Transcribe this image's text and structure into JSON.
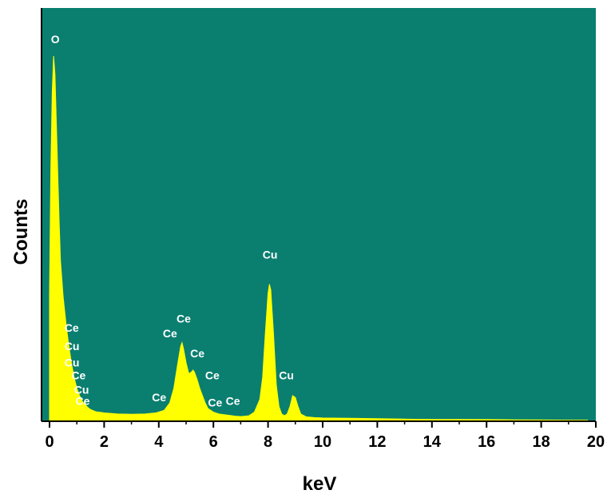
{
  "chart_data": {
    "type": "area",
    "title": "",
    "xlabel": "keV",
    "ylabel": "Counts",
    "xlim": [
      -0.3,
      20.2
    ],
    "ylim": [
      0,
      100
    ],
    "x_ticks": [
      "0",
      "2",
      "4",
      "6",
      "8",
      "10",
      "12",
      "14",
      "16",
      "18",
      "20"
    ],
    "grid": false,
    "legend": "none",
    "colors": {
      "plot_background": "#0a7f70",
      "spectrum_fill": "#ffff00",
      "peak_label": "#ffffff",
      "axes": "#000000"
    },
    "series": [
      {
        "x": [
          0.0,
          0.05,
          0.1,
          0.15,
          0.2,
          0.25,
          0.3,
          0.35,
          0.4,
          0.5,
          0.6,
          0.7,
          0.8,
          0.9,
          1.0,
          1.1,
          1.2,
          1.3,
          1.4,
          1.5,
          1.7,
          2.0,
          2.5,
          3.0,
          3.5,
          3.9,
          4.2,
          4.4,
          4.55,
          4.7,
          4.8,
          4.85,
          4.9,
          5.0,
          5.1,
          5.2,
          5.25,
          5.3,
          5.4,
          5.5,
          5.6,
          5.7,
          5.8,
          6.0,
          6.2,
          6.5,
          6.8,
          7.0,
          7.3,
          7.5,
          7.7,
          7.8,
          7.9,
          8.0,
          8.05,
          8.1,
          8.2,
          8.3,
          8.4,
          8.5,
          8.6,
          8.7,
          8.8,
          8.9,
          9.0,
          9.1,
          9.2,
          9.4,
          9.7,
          10.0,
          11.0,
          12.0,
          13.0,
          14.0,
          15.0,
          16.0,
          17.0,
          18.0,
          19.0,
          19.7
        ],
        "values": [
          35,
          70,
          90,
          100,
          95,
          82,
          68,
          55,
          44,
          34,
          27,
          21,
          16,
          12,
          9,
          7,
          5.5,
          4.5,
          3.8,
          3.2,
          2.6,
          2.3,
          2.0,
          1.9,
          2.0,
          2.3,
          3.0,
          5.0,
          9.0,
          16.0,
          20.5,
          21.5,
          20.0,
          16.0,
          13.0,
          13.5,
          14.0,
          13.5,
          11.5,
          9.0,
          7.0,
          5.0,
          3.5,
          2.5,
          2.0,
          1.7,
          1.4,
          1.3,
          1.5,
          2.5,
          6.0,
          12.0,
          24.0,
          35.0,
          37.5,
          36.0,
          24.0,
          10.0,
          4.0,
          2.0,
          1.5,
          2.0,
          4.0,
          7.0,
          6.5,
          4.0,
          2.0,
          1.2,
          1.0,
          0.9,
          0.8,
          0.7,
          0.6,
          0.5,
          0.5,
          0.45,
          0.4,
          0.35,
          0.3,
          0.3
        ]
      }
    ],
    "annotations": [
      {
        "text": "O",
        "x": 0.05,
        "y": 103.5
      },
      {
        "text": "Ce",
        "x": 0.55,
        "y": 24.5
      },
      {
        "text": "Cu",
        "x": 0.55,
        "y": 19.5
      },
      {
        "text": "Cu",
        "x": 0.55,
        "y": 15.0
      },
      {
        "text": "Ce",
        "x": 0.8,
        "y": 11.5
      },
      {
        "text": "Cu",
        "x": 0.9,
        "y": 7.5
      },
      {
        "text": "Ce",
        "x": 0.95,
        "y": 4.5
      },
      {
        "text": "Ce",
        "x": 3.75,
        "y": 5.5
      },
      {
        "text": "Ce",
        "x": 4.15,
        "y": 23.0
      },
      {
        "text": "Ce",
        "x": 4.65,
        "y": 27.0
      },
      {
        "text": "Ce",
        "x": 5.15,
        "y": 17.5
      },
      {
        "text": "Ce",
        "x": 5.7,
        "y": 11.5
      },
      {
        "text": "Ce",
        "x": 5.8,
        "y": 4.0
      },
      {
        "text": "Ce",
        "x": 6.45,
        "y": 4.5
      },
      {
        "text": "Cu",
        "x": 7.8,
        "y": 44.5
      },
      {
        "text": "Cu",
        "x": 8.4,
        "y": 11.5
      }
    ]
  }
}
